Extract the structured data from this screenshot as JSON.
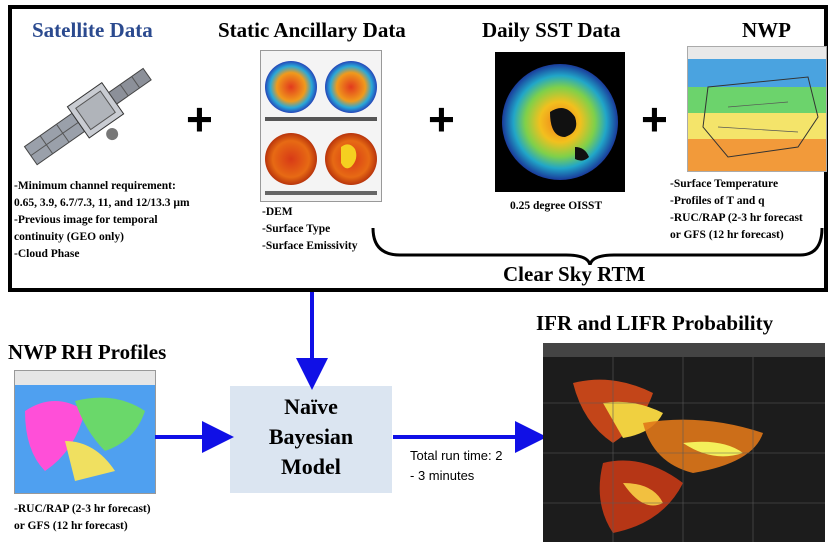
{
  "top_section": {
    "satellite": {
      "title": "Satellite Data",
      "notes": [
        "-Minimum channel requirement:",
        "0.65, 3.9, 6.7/7.3,  11, and 12/13.3  µm",
        "-Previous image for temporal",
        "continuity (GEO only)",
        "-Cloud Phase"
      ]
    },
    "ancillary": {
      "title": "Static Ancillary Data",
      "notes": [
        "-DEM",
        "-Surface Type",
        "-Surface Emissivity"
      ]
    },
    "sst": {
      "title": "Daily SST Data",
      "notes": [
        "0.25 degree OISST"
      ]
    },
    "nwp": {
      "title": "NWP",
      "notes": [
        "-Surface Temperature",
        "-Profiles of T and q",
        "-RUC/RAP  (2-3 hr forecast",
        "or GFS (12 hr forecast)"
      ]
    },
    "plus_symbol": "+",
    "rtm_label": "Clear Sky RTM"
  },
  "bottom_section": {
    "rh_profiles": {
      "title": "NWP RH Profiles",
      "notes": [
        "-RUC/RAP  (2-3 hr forecast)",
        "or GFS (12 hr forecast)"
      ]
    },
    "model": {
      "lines": [
        "Naïve",
        "Bayesian",
        "Model"
      ]
    },
    "run_time": {
      "lines": [
        "Total run time: 2",
        "- 3 minutes"
      ]
    },
    "output": {
      "title": "IFR and LIFR Probability"
    }
  },
  "colors": {
    "arrow": "#1010e6",
    "model_box": "#dbe5f1",
    "title_blue": "#1f3d8c"
  }
}
